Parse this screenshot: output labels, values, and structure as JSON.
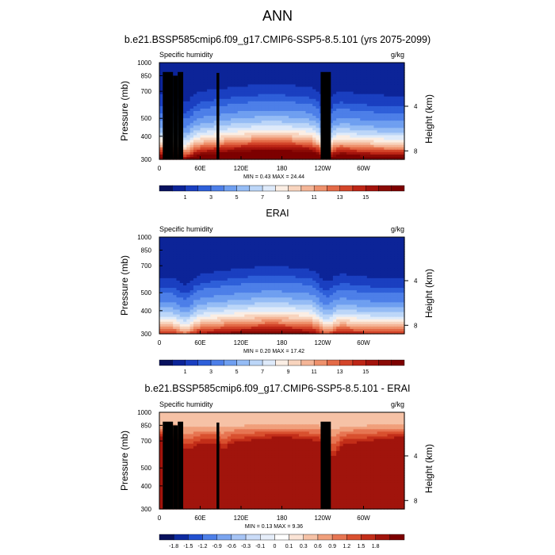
{
  "title": "ANN",
  "colors": {
    "background": "#ffffff",
    "frame": "#000000",
    "mask": "#000000",
    "field_palette": [
      "#08115e",
      "#0c2498",
      "#1a3fc0",
      "#2e5fd9",
      "#4d7fe8",
      "#6f9ff0",
      "#95bcf5",
      "#bcd6f8",
      "#deeafa",
      "#fbeee4",
      "#f8d4be",
      "#f4b597",
      "#ee916c",
      "#e36a47",
      "#d3452a",
      "#bd2616",
      "#a3130c",
      "#8a0a05",
      "#7d0000"
    ],
    "diff_palette": [
      "#08115e",
      "#0d2aa0",
      "#2250d0",
      "#4d7fe8",
      "#7aa4ef",
      "#a6c4f5",
      "#cadcf8",
      "#e6eefa",
      "#ffffff",
      "#fbe4d6",
      "#f6c2a6",
      "#f09f7b",
      "#e77552",
      "#d9502f",
      "#c32e19",
      "#a1140c",
      "#7d0000"
    ]
  },
  "chart_data": [
    {
      "type": "heatmap",
      "title": "b.e21.BSSP585cmip6.f09_g17.CMIP6-SSP5-8.5.101 (yrs 2075-2099)",
      "subtitle_left": "Specific humidity",
      "subtitle_right": "g/kg",
      "ylabel": "Pressure (mb)",
      "ylabel_right": "Height (km)",
      "x_ticks": [
        "0",
        "60E",
        "120E",
        "180",
        "120W",
        "60W"
      ],
      "y_ticks": [
        "300",
        "400",
        "500",
        "700",
        "850",
        "1000"
      ],
      "y_ticks_right": [
        "8",
        "4"
      ],
      "minmax": "MIN =   0.43  MAX =  24.44",
      "min": 0.43,
      "max": 24.44,
      "xlim": [
        0,
        360
      ],
      "ylim": [
        1000,
        300
      ],
      "colorbar": {
        "labels": [
          "1",
          "3",
          "5",
          "7",
          "9",
          "11",
          "13",
          "15"
        ],
        "levels": [
          0.5,
          1,
          1.5,
          2,
          3,
          4,
          5,
          6,
          7,
          8,
          9,
          10,
          11,
          12,
          13,
          14,
          15,
          16
        ]
      }
    },
    {
      "type": "heatmap",
      "title": "ERAI",
      "subtitle_left": "Specific humidity",
      "subtitle_right": "g/kg",
      "ylabel": "Pressure (mb)",
      "ylabel_right": "Height (km)",
      "x_ticks": [
        "0",
        "60E",
        "120E",
        "180",
        "120W",
        "60W"
      ],
      "y_ticks": [
        "300",
        "400",
        "500",
        "700",
        "850",
        "1000"
      ],
      "y_ticks_right": [
        "8",
        "4"
      ],
      "minmax": "MIN =   0.20  MAX =  17.42",
      "min": 0.2,
      "max": 17.42,
      "xlim": [
        0,
        360
      ],
      "ylim": [
        1000,
        300
      ],
      "colorbar": {
        "labels": [
          "1",
          "3",
          "5",
          "7",
          "9",
          "11",
          "13",
          "15"
        ],
        "levels": [
          0.5,
          1,
          1.5,
          2,
          3,
          4,
          5,
          6,
          7,
          8,
          9,
          10,
          11,
          12,
          13,
          14,
          15,
          16
        ]
      }
    },
    {
      "type": "heatmap",
      "title": "b.e21.BSSP585cmip6.f09_g17.CMIP6-SSP5-8.5.101 - ERAI",
      "subtitle_left": "Specific humidity",
      "subtitle_right": "g/kg",
      "ylabel": "Pressure (mb)",
      "ylabel_right": "Height (km)",
      "x_ticks": [
        "0",
        "60E",
        "120E",
        "180",
        "120W",
        "60W"
      ],
      "y_ticks": [
        "300",
        "400",
        "500",
        "700",
        "850",
        "1000"
      ],
      "y_ticks_right": [
        "8",
        "4"
      ],
      "minmax": "MIN =   0.13  MAX =   9.36",
      "min": 0.13,
      "max": 9.36,
      "xlim": [
        0,
        360
      ],
      "ylim": [
        1000,
        300
      ],
      "colorbar": {
        "labels": [
          "-1.8",
          "-1.5",
          "-1.2",
          "-0.9",
          "-0.6",
          "-0.3",
          "-0.1",
          "0",
          "0.1",
          "0.3",
          "0.6",
          "0.9",
          "1.2",
          "1.5",
          "1.8"
        ],
        "levels": [
          -1.8,
          -1.5,
          -1.2,
          -0.9,
          -0.6,
          -0.3,
          -0.1,
          0,
          0.1,
          0.3,
          0.6,
          0.9,
          1.2,
          1.5,
          1.8
        ]
      }
    }
  ]
}
